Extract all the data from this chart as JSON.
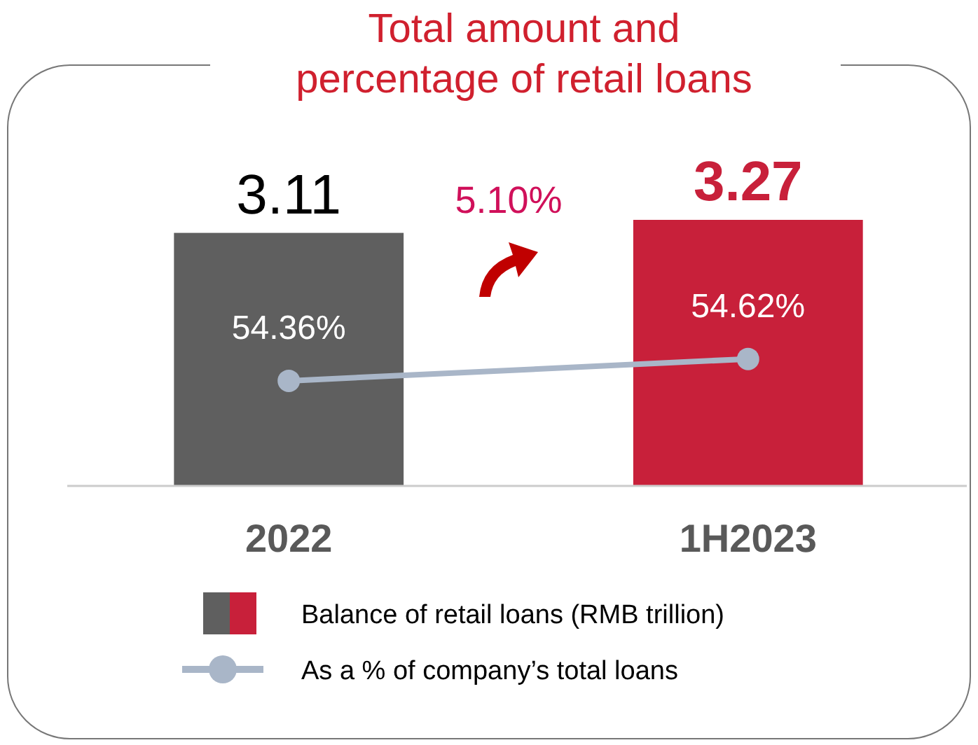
{
  "chart_data": {
    "type": "bar",
    "title": "Total amount and\npercentage of retail loans",
    "categories": [
      "2022",
      "1H2023"
    ],
    "series": [
      {
        "type": "bar",
        "name": "Balance of retail loans (RMB trillion)",
        "colors": [
          "#5f5f5f",
          "#c8203a"
        ],
        "values": [
          3.11,
          3.27
        ],
        "value_labels": [
          "3.11",
          "3.27"
        ]
      },
      {
        "type": "line",
        "name": "As a % of company’s total loans",
        "color": "#a9b6c8",
        "axis": "y2",
        "marker": "circle",
        "values": [
          54.36,
          54.62
        ],
        "value_labels": [
          "54.36%",
          "54.62%"
        ]
      }
    ],
    "tick_labels": "x",
    "legend": "bottom",
    "annotations": [
      "5.10%"
    ]
  }
}
